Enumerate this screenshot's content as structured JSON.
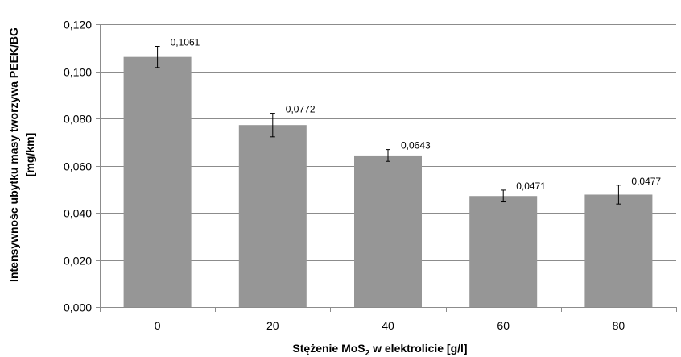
{
  "chart_data": {
    "type": "bar",
    "categories": [
      "0",
      "20",
      "40",
      "60",
      "80"
    ],
    "values": [
      0.1061,
      0.0772,
      0.0643,
      0.0471,
      0.0477
    ],
    "value_labels": [
      "0,1061",
      "0,0772",
      "0,0643",
      "0,0471",
      "0,0477"
    ],
    "error_minus": [
      0.0045,
      0.005,
      0.0025,
      0.0025,
      0.004
    ],
    "error_plus": [
      0.0045,
      0.005,
      0.0025,
      0.0025,
      0.004
    ],
    "ylim": [
      0,
      0.12
    ],
    "yticks": [
      0,
      0.02,
      0.04,
      0.06,
      0.08,
      0.1,
      0.12
    ],
    "ytick_labels": [
      "0,000",
      "0,020",
      "0,040",
      "0,060",
      "0,080",
      "0,100",
      "0,120"
    ],
    "ylabel_line1": "Intensywnośc ubytku masy tworzywa PEEK/BG",
    "ylabel_line2": "[mg/km]",
    "xlabel_pre": "Stężenie MoS",
    "xlabel_sub": "2",
    "xlabel_post": " w elektrolicie [g/l]",
    "grid": "horizontal",
    "legend": "none",
    "colors": {
      "bar": "#969696",
      "grid": "#8c8c8c",
      "axis": "#8c8c8c",
      "error": "#000000"
    }
  }
}
